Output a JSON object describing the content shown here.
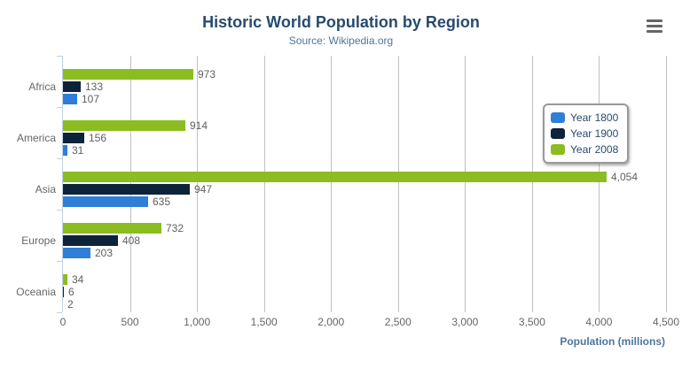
{
  "chart": {
    "title": "Historic World Population by Region",
    "subtitle": "Source: Wikipedia.org"
  },
  "icons": {
    "context_menu": "hamburger-menu-icon"
  },
  "colors": {
    "title": "#274b6d",
    "subtitle": "#4d759e",
    "axis_title": "#4d759e",
    "axis_labels": "#666666",
    "data_labels": "#606060",
    "gridline": "#c0c0c0",
    "category_axis_line": "#c0d0e0",
    "legend_border": "#999999",
    "series_blue": "#2f7ed8",
    "series_navy": "#0d233a",
    "series_green": "#8bbc21"
  },
  "chart_data": {
    "type": "bar",
    "orientation": "horizontal",
    "title": "Historic World Population by Region",
    "subtitle": "Source: Wikipedia.org",
    "categories": [
      "Africa",
      "America",
      "Asia",
      "Europe",
      "Oceania"
    ],
    "series": [
      {
        "name": "Year 1800",
        "color": "#2f7ed8",
        "values": [
          107,
          31,
          635,
          203,
          2
        ],
        "labels": [
          "107",
          "31",
          "635",
          "203",
          "2"
        ]
      },
      {
        "name": "Year 1900",
        "color": "#0d233a",
        "values": [
          133,
          156,
          947,
          408,
          6
        ],
        "labels": [
          "133",
          "156",
          "947",
          "408",
          "6"
        ]
      },
      {
        "name": "Year 2008",
        "color": "#8bbc21",
        "values": [
          973,
          914,
          4054,
          732,
          34
        ],
        "labels": [
          "973",
          "914",
          "4,054",
          "732",
          "34"
        ]
      }
    ],
    "bar_display_order_top_to_bottom": [
      "Year 2008",
      "Year 1900",
      "Year 1800"
    ],
    "xlabel": "Population (millions)",
    "ylabel": "",
    "xlim": [
      0,
      4500
    ],
    "x_ticks": [
      "0",
      "500",
      "1,000",
      "1,500",
      "2,000",
      "2,500",
      "3,000",
      "3,500",
      "4,000",
      "4,500"
    ],
    "grid": true,
    "legend_position": "right-overlay"
  }
}
